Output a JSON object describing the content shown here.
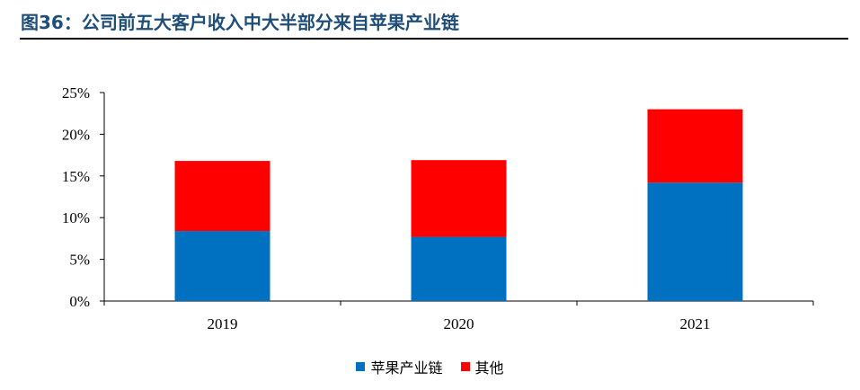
{
  "title": "图36：公司前五大客户收入中大半部分来自苹果产业链",
  "chart_data": {
    "type": "bar",
    "stacked": true,
    "categories": [
      "2019",
      "2020",
      "2021"
    ],
    "series": [
      {
        "name": "苹果产业链",
        "values": [
          8.4,
          7.7,
          14.2
        ],
        "color": "#0070c0"
      },
      {
        "name": "其他",
        "values": [
          8.4,
          9.2,
          8.8
        ],
        "color": "#ff0000"
      }
    ],
    "ylim": [
      0,
      25
    ],
    "yticks": [
      "0%",
      "5%",
      "10%",
      "15%",
      "20%",
      "25%"
    ],
    "grid": false,
    "legend_position": "bottom"
  }
}
